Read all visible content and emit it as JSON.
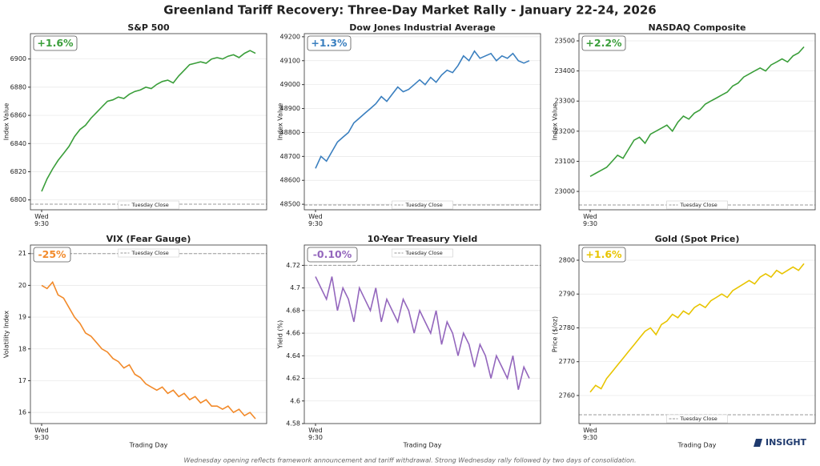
{
  "title": "Greenland Tariff Recovery: Three-Day Market Rally - January 22-24, 2026",
  "caption": "Wednesday opening reflects framework announcement and tariff withdrawal. Strong Wednesday rally followed by two days of consolidation.",
  "logo": "INSIGHT",
  "chart_data": [
    {
      "type": "line",
      "title": "S&P 500",
      "ylabel": "Index Value",
      "annotation": "+1.6%",
      "grid": true,
      "legend": "lower center",
      "categories": [
        "Wed\n9:30",
        null,
        null,
        null,
        null,
        null,
        null,
        null,
        null,
        null,
        null,
        null,
        null,
        null,
        null,
        null,
        null,
        null,
        null,
        null,
        null,
        null,
        null,
        null,
        null,
        null,
        null,
        null,
        null,
        null,
        null,
        null,
        null,
        null,
        null,
        null,
        null,
        null,
        null,
        null
      ],
      "ylim": [
        6793,
        6918
      ],
      "yticks": [
        6800,
        6820,
        6840,
        6860,
        6880,
        6900
      ],
      "series": [
        {
          "name": "S&P 500",
          "color": "#3a9e3a",
          "values": [
            6806,
            6815,
            6822,
            6828,
            6833,
            6838,
            6845,
            6850,
            6853,
            6858,
            6862,
            6866,
            6870,
            6871,
            6873,
            6872,
            6875,
            6877,
            6878,
            6880,
            6879,
            6882,
            6884,
            6885,
            6883,
            6888,
            6892,
            6896,
            6897,
            6898,
            6897,
            6900,
            6901,
            6900,
            6902,
            6903,
            6901,
            6904,
            6906,
            6904
          ]
        }
      ],
      "hline": {
        "name": "Tuesday Close",
        "value": 6797,
        "color": "#999999"
      }
    },
    {
      "type": "line",
      "title": "Dow Jones Industrial Average",
      "ylabel": "Index Value",
      "annotation": "+1.3%",
      "grid": true,
      "legend": "lower center",
      "categories": [
        "Wed\n9:30",
        null,
        null,
        null,
        null,
        null,
        null,
        null,
        null,
        null,
        null,
        null,
        null,
        null,
        null,
        null,
        null,
        null,
        null,
        null,
        null,
        null,
        null,
        null,
        null,
        null,
        null,
        null,
        null,
        null,
        null,
        null,
        null,
        null,
        null,
        null,
        null,
        null,
        null,
        null
      ],
      "ylim": [
        48477,
        49213
      ],
      "yticks": [
        48500,
        48600,
        48700,
        48800,
        48900,
        49000,
        49100,
        49200
      ],
      "series": [
        {
          "name": "Dow Jones Industrial Average",
          "color": "#3a7fbf",
          "values": [
            48650,
            48700,
            48680,
            48720,
            48760,
            48780,
            48800,
            48840,
            48860,
            48880,
            48900,
            48920,
            48950,
            48930,
            48960,
            48990,
            48970,
            48980,
            49000,
            49020,
            49000,
            49030,
            49010,
            49040,
            49060,
            49050,
            49080,
            49120,
            49100,
            49140,
            49110,
            49120,
            49130,
            49100,
            49120,
            49110,
            49130,
            49100,
            49090,
            49100
          ]
        }
      ],
      "hline": {
        "name": "Tuesday Close",
        "value": 48497,
        "color": "#999999"
      }
    },
    {
      "type": "line",
      "title": "NASDAQ Composite",
      "ylabel": "Index Value",
      "annotation": "+2.2%",
      "grid": true,
      "legend": "lower center",
      "categories": [
        "Wed\n9:30",
        null,
        null,
        null,
        null,
        null,
        null,
        null,
        null,
        null,
        null,
        null,
        null,
        null,
        null,
        null,
        null,
        null,
        null,
        null,
        null,
        null,
        null,
        null,
        null,
        null,
        null,
        null,
        null,
        null,
        null,
        null,
        null,
        null,
        null,
        null,
        null,
        null,
        null,
        null
      ],
      "ylim": [
        22939,
        23524
      ],
      "yticks": [
        23000,
        23100,
        23200,
        23300,
        23400,
        23500
      ],
      "series": [
        {
          "name": "NASDAQ Composite",
          "color": "#3a9e3a",
          "values": [
            23050,
            23060,
            23070,
            23080,
            23100,
            23120,
            23110,
            23140,
            23170,
            23180,
            23160,
            23190,
            23200,
            23210,
            23220,
            23200,
            23230,
            23250,
            23240,
            23260,
            23270,
            23290,
            23300,
            23310,
            23320,
            23330,
            23350,
            23360,
            23380,
            23390,
            23400,
            23410,
            23400,
            23420,
            23430,
            23440,
            23430,
            23450,
            23460,
            23480
          ]
        }
      ],
      "hline": {
        "name": "Tuesday Close",
        "value": 22955,
        "color": "#999999"
      }
    },
    {
      "type": "line",
      "title": "VIX (Fear Gauge)",
      "ylabel": "Volatility Index",
      "xlabel": "Trading Day",
      "annotation": "-25%",
      "grid": true,
      "legend": "upper center",
      "categories": [
        "Wed\n9:30",
        null,
        null,
        null,
        null,
        null,
        null,
        null,
        null,
        null,
        null,
        null,
        null,
        null,
        null,
        null,
        null,
        null,
        null,
        null,
        null,
        null,
        null,
        null,
        null,
        null,
        null,
        null,
        null,
        null,
        null,
        null,
        null,
        null,
        null,
        null,
        null,
        null,
        null,
        null
      ],
      "ylim": [
        15.65,
        21.27
      ],
      "yticks": [
        16,
        17,
        18,
        19,
        20,
        21
      ],
      "series": [
        {
          "name": "VIX (Fear Gauge)",
          "color": "#f28a2a",
          "values": [
            20.0,
            19.9,
            20.1,
            19.7,
            19.6,
            19.3,
            19.0,
            18.8,
            18.5,
            18.4,
            18.2,
            18.0,
            17.9,
            17.7,
            17.6,
            17.4,
            17.5,
            17.2,
            17.1,
            16.9,
            16.8,
            16.7,
            16.8,
            16.6,
            16.7,
            16.5,
            16.6,
            16.4,
            16.5,
            16.3,
            16.4,
            16.2,
            16.2,
            16.1,
            16.2,
            16.0,
            16.1,
            15.9,
            16.0,
            15.8
          ]
        }
      ],
      "hline": {
        "name": "Tuesday Close",
        "value": 21,
        "color": "#999999"
      }
    },
    {
      "type": "line",
      "title": "10-Year Treasury Yield",
      "ylabel": "Yield (%)",
      "xlabel": "Trading Day",
      "annotation": "-0.10%",
      "grid": true,
      "legend": "upper center",
      "categories": [
        "Wed\n9:30",
        null,
        null,
        null,
        null,
        null,
        null,
        null,
        null,
        null,
        null,
        null,
        null,
        null,
        null,
        null,
        null,
        null,
        null,
        null,
        null,
        null,
        null,
        null,
        null,
        null,
        null,
        null,
        null,
        null,
        null,
        null,
        null,
        null,
        null,
        null,
        null,
        null,
        null,
        null
      ],
      "ylim": [
        4.58,
        4.738
      ],
      "yticks": [
        4.58,
        4.6,
        4.62,
        4.64,
        4.66,
        4.68,
        4.7,
        4.72
      ],
      "series": [
        {
          "name": "10-Year Treasury Yield",
          "color": "#9467bd",
          "values": [
            4.71,
            4.7,
            4.69,
            4.71,
            4.68,
            4.7,
            4.69,
            4.67,
            4.7,
            4.69,
            4.68,
            4.7,
            4.67,
            4.69,
            4.68,
            4.67,
            4.69,
            4.68,
            4.66,
            4.68,
            4.67,
            4.66,
            4.68,
            4.65,
            4.67,
            4.66,
            4.64,
            4.66,
            4.65,
            4.63,
            4.65,
            4.64,
            4.62,
            4.64,
            4.63,
            4.62,
            4.64,
            4.61,
            4.63,
            4.62
          ]
        }
      ],
      "hline": {
        "name": "Tuesday Close",
        "value": 4.72,
        "color": "#999999"
      }
    },
    {
      "type": "line",
      "title": "Gold (Spot Price)",
      "ylabel": "Price ($/oz)",
      "xlabel": "Trading Day",
      "annotation": "+1.6%",
      "grid": true,
      "legend": "lower center",
      "categories": [
        "Wed\n9:30",
        null,
        null,
        null,
        null,
        null,
        null,
        null,
        null,
        null,
        null,
        null,
        null,
        null,
        null,
        null,
        null,
        null,
        null,
        null,
        null,
        null,
        null,
        null,
        null,
        null,
        null,
        null,
        null,
        null,
        null,
        null,
        null,
        null,
        null,
        null,
        null,
        null,
        null,
        null
      ],
      "ylim": [
        2751.7,
        2804.5
      ],
      "yticks": [
        2760,
        2770,
        2780,
        2790,
        2800
      ],
      "series": [
        {
          "name": "Gold (Spot Price)",
          "color": "#e8c400",
          "values": [
            2761,
            2763,
            2762,
            2765,
            2767,
            2769,
            2771,
            2773,
            2775,
            2777,
            2779,
            2780,
            2778,
            2781,
            2782,
            2784,
            2783,
            2785,
            2784,
            2786,
            2787,
            2786,
            2788,
            2789,
            2790,
            2789,
            2791,
            2792,
            2793,
            2794,
            2793,
            2795,
            2796,
            2795,
            2797,
            2796,
            2797,
            2798,
            2797,
            2799
          ]
        }
      ],
      "hline": {
        "name": "Tuesday Close",
        "value": 2754.3,
        "color": "#999999"
      }
    }
  ]
}
